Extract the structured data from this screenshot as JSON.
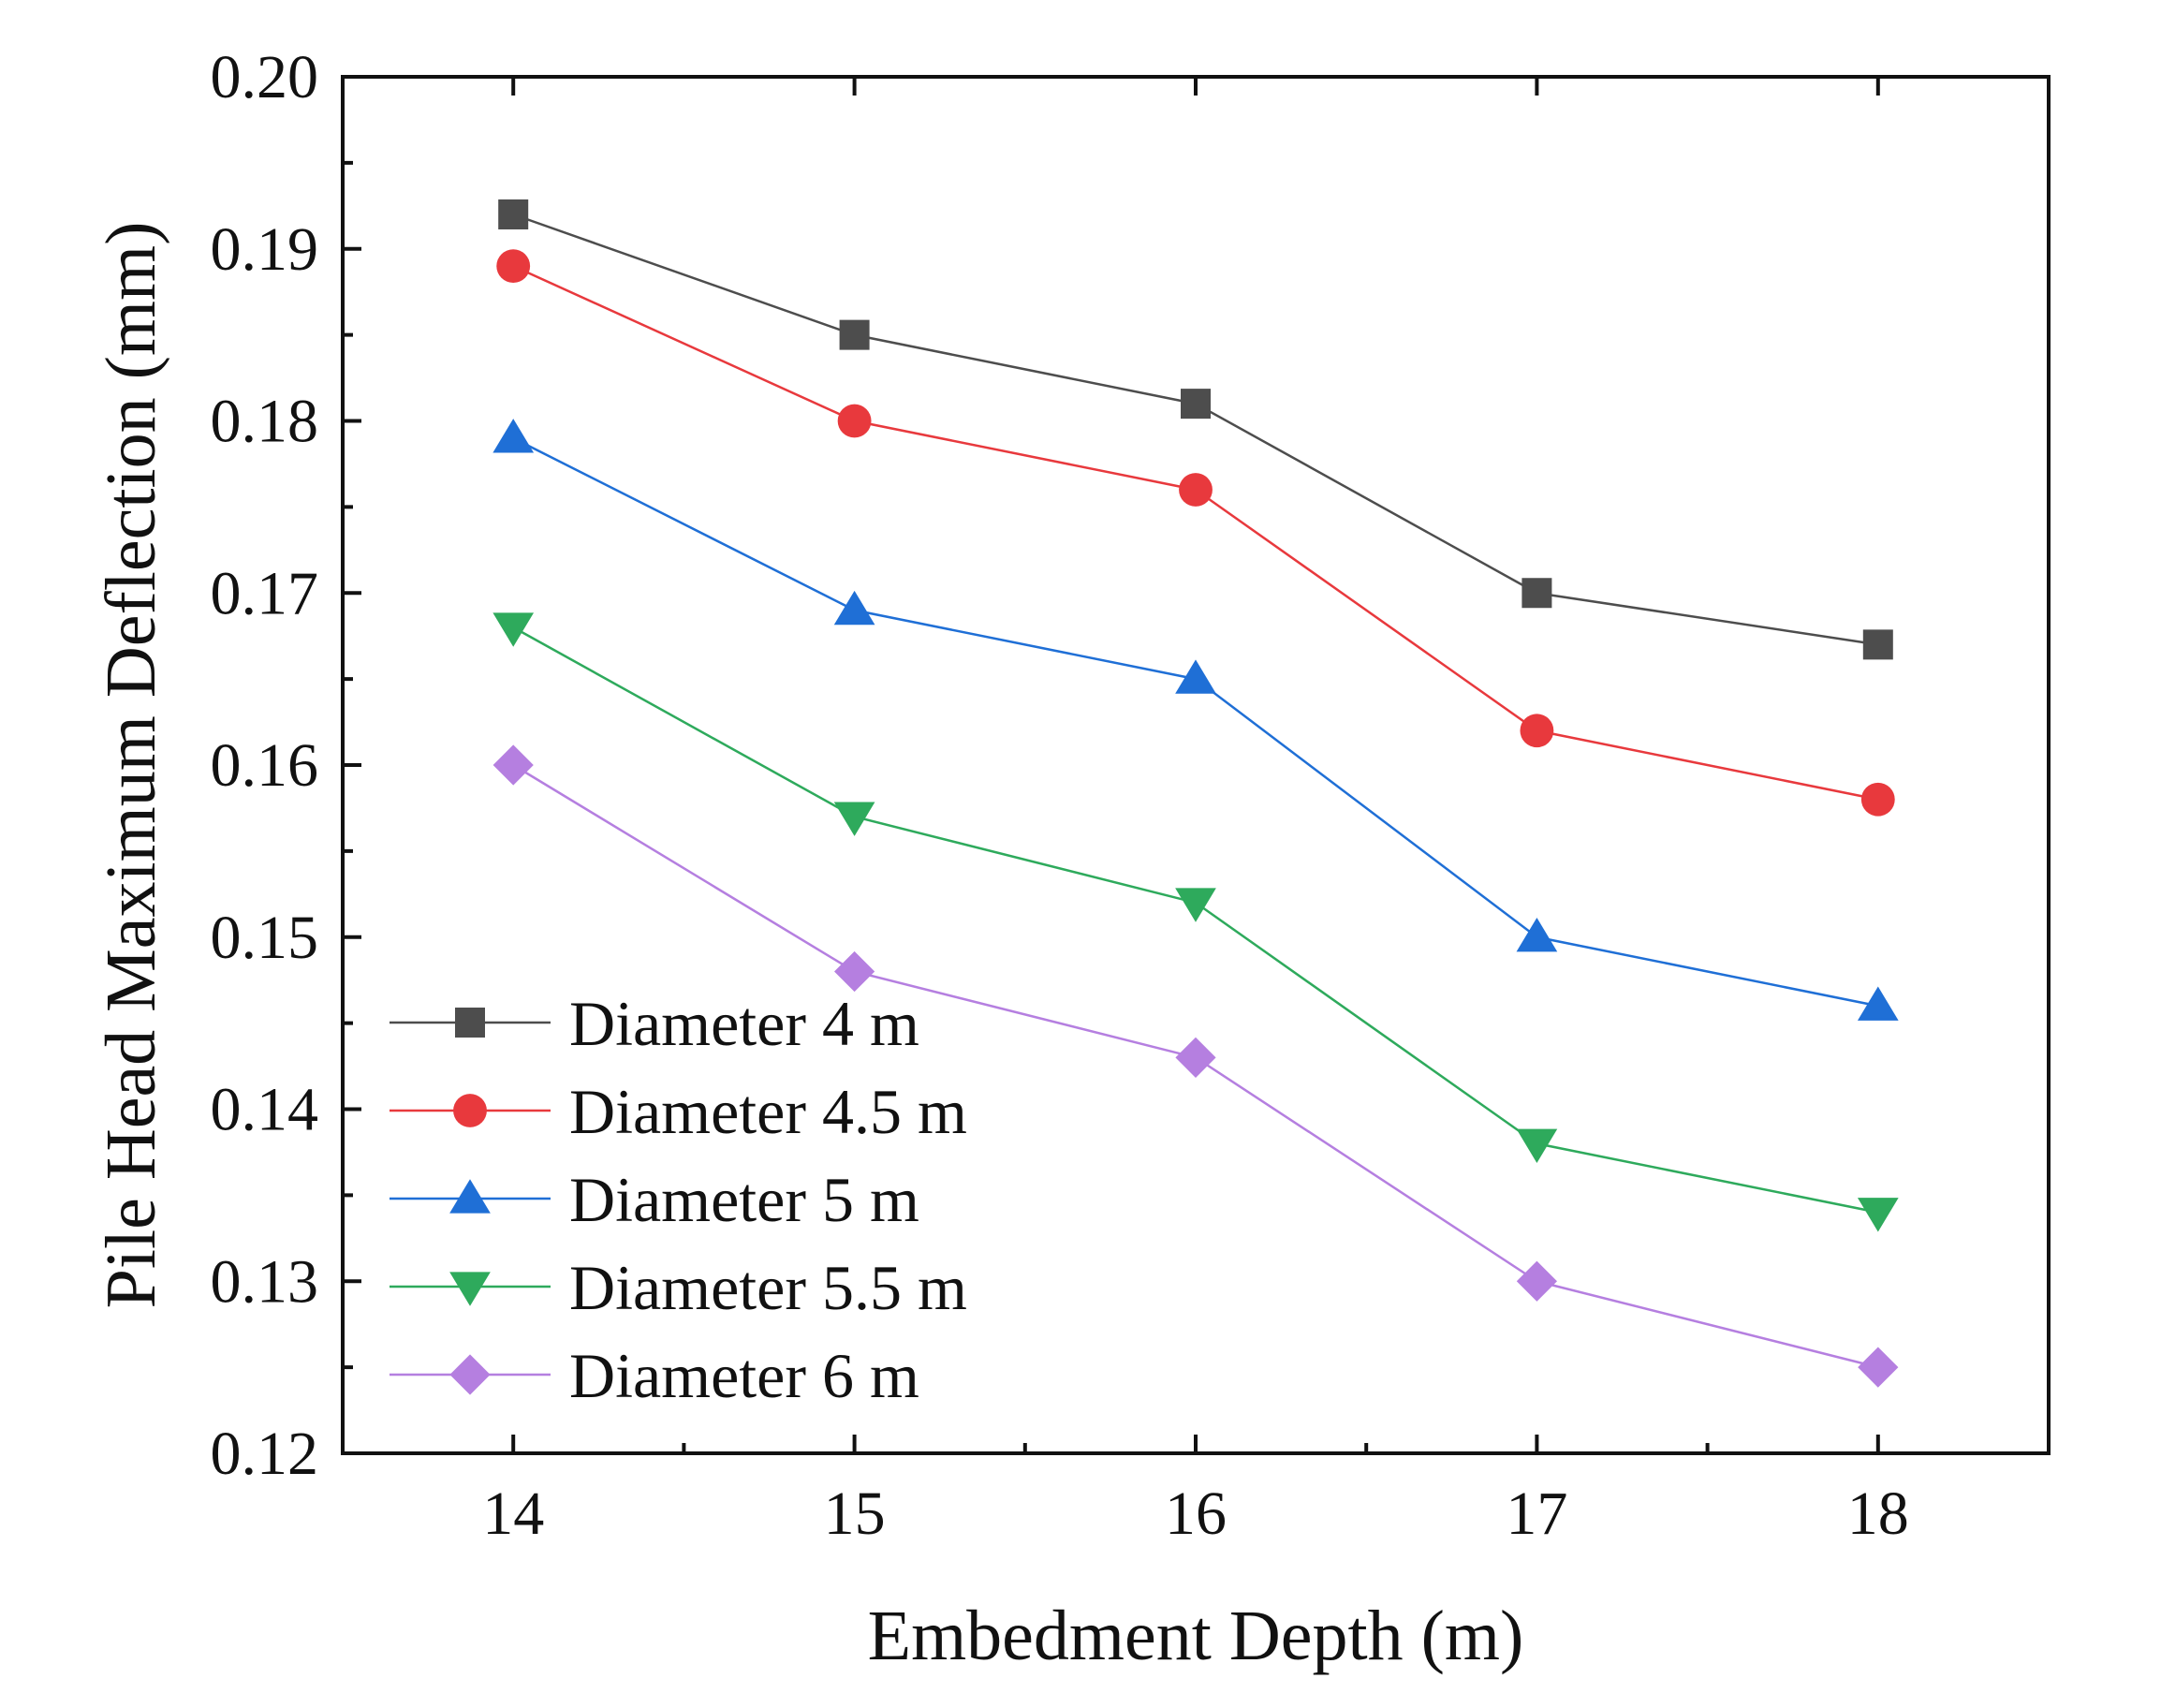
{
  "chart_data": {
    "type": "line",
    "title": "",
    "xlabel": "Embedment Depth (m)",
    "ylabel": "Pile Head Maximum Deflection (mm)",
    "x": [
      14,
      15,
      16,
      17,
      18
    ],
    "x_ticks": [
      "14",
      "15",
      "16",
      "17",
      "18"
    ],
    "xlim": [
      13.5,
      18.5
    ],
    "ylim": [
      0.12,
      0.2
    ],
    "y_ticks": [
      "0.12",
      "0.13",
      "0.14",
      "0.15",
      "0.16",
      "0.17",
      "0.18",
      "0.19",
      "0.20"
    ],
    "grid": false,
    "legend_position": "bottom-left",
    "series": [
      {
        "name": "Diameter 4 m",
        "color": "#4d4d4d",
        "marker": "square",
        "values": [
          0.192,
          0.185,
          0.181,
          0.17,
          0.167
        ]
      },
      {
        "name": "Diameter 4.5 m",
        "color": "#e8393d",
        "marker": "circle",
        "values": [
          0.189,
          0.18,
          0.176,
          0.162,
          0.158
        ]
      },
      {
        "name": "Diameter 5 m",
        "color": "#1f6fd6",
        "marker": "triangle-up",
        "values": [
          0.179,
          0.169,
          0.165,
          0.15,
          0.146
        ]
      },
      {
        "name": "Diameter 5.5 m",
        "color": "#2eaa5c",
        "marker": "triangle-down",
        "values": [
          0.168,
          0.157,
          0.152,
          0.138,
          0.134
        ]
      },
      {
        "name": "Diameter 6 m",
        "color": "#b57fe0",
        "marker": "diamond",
        "values": [
          0.16,
          0.148,
          0.143,
          0.13,
          0.125
        ]
      }
    ]
  }
}
